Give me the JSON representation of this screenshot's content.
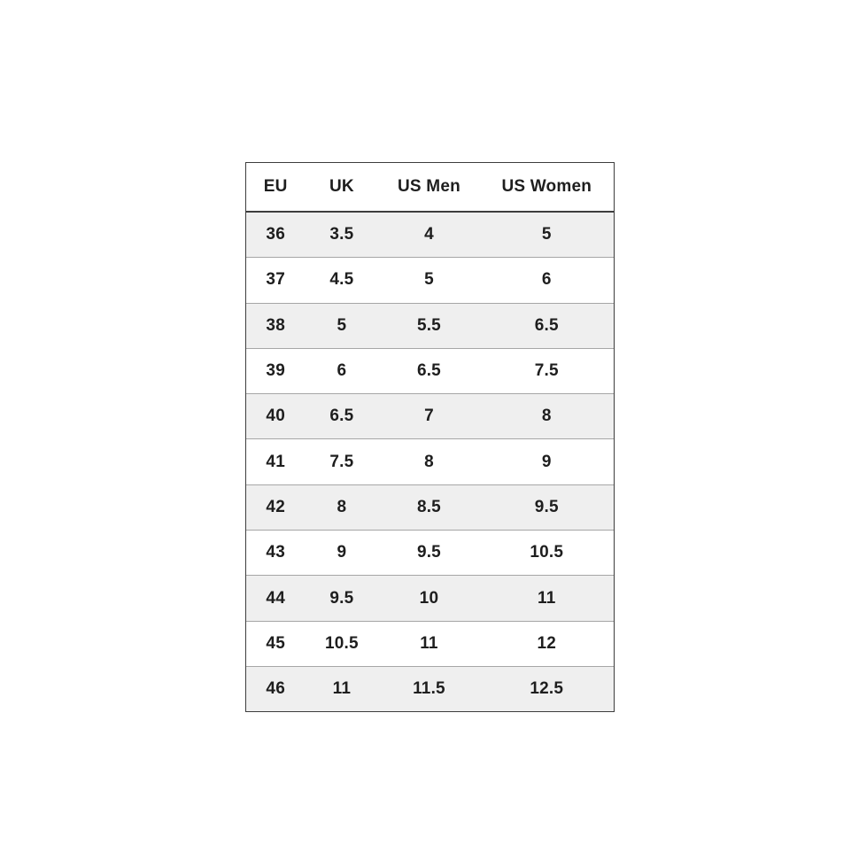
{
  "chart_data": {
    "type": "table",
    "columns": [
      "EU",
      "UK",
      "US Men",
      "US Women"
    ],
    "rows": [
      [
        "36",
        "3.5",
        "4",
        "5"
      ],
      [
        "37",
        "4.5",
        "5",
        "6"
      ],
      [
        "38",
        "5",
        "5.5",
        "6.5"
      ],
      [
        "39",
        "6",
        "6.5",
        "7.5"
      ],
      [
        "40",
        "6.5",
        "7",
        "8"
      ],
      [
        "41",
        "7.5",
        "8",
        "9"
      ],
      [
        "42",
        "8",
        "8.5",
        "9.5"
      ],
      [
        "43",
        "9",
        "9.5",
        "10.5"
      ],
      [
        "44",
        "9.5",
        "10",
        "11"
      ],
      [
        "45",
        "10.5",
        "11",
        "12"
      ],
      [
        "46",
        "11",
        "11.5",
        "12.5"
      ]
    ],
    "layout": {
      "stripe": "odd-rows-gray",
      "legend": "none",
      "grid": "horizontal-separators"
    }
  },
  "colors": {
    "page_bg": "#ffffff",
    "stripe_bg": "#efefef",
    "row_bg": "#ffffff",
    "outer_border": "#3d3d3d",
    "header_underline": "#3d3d3d",
    "row_separator": "#a6a6a6",
    "text": "#1e1e1e"
  }
}
